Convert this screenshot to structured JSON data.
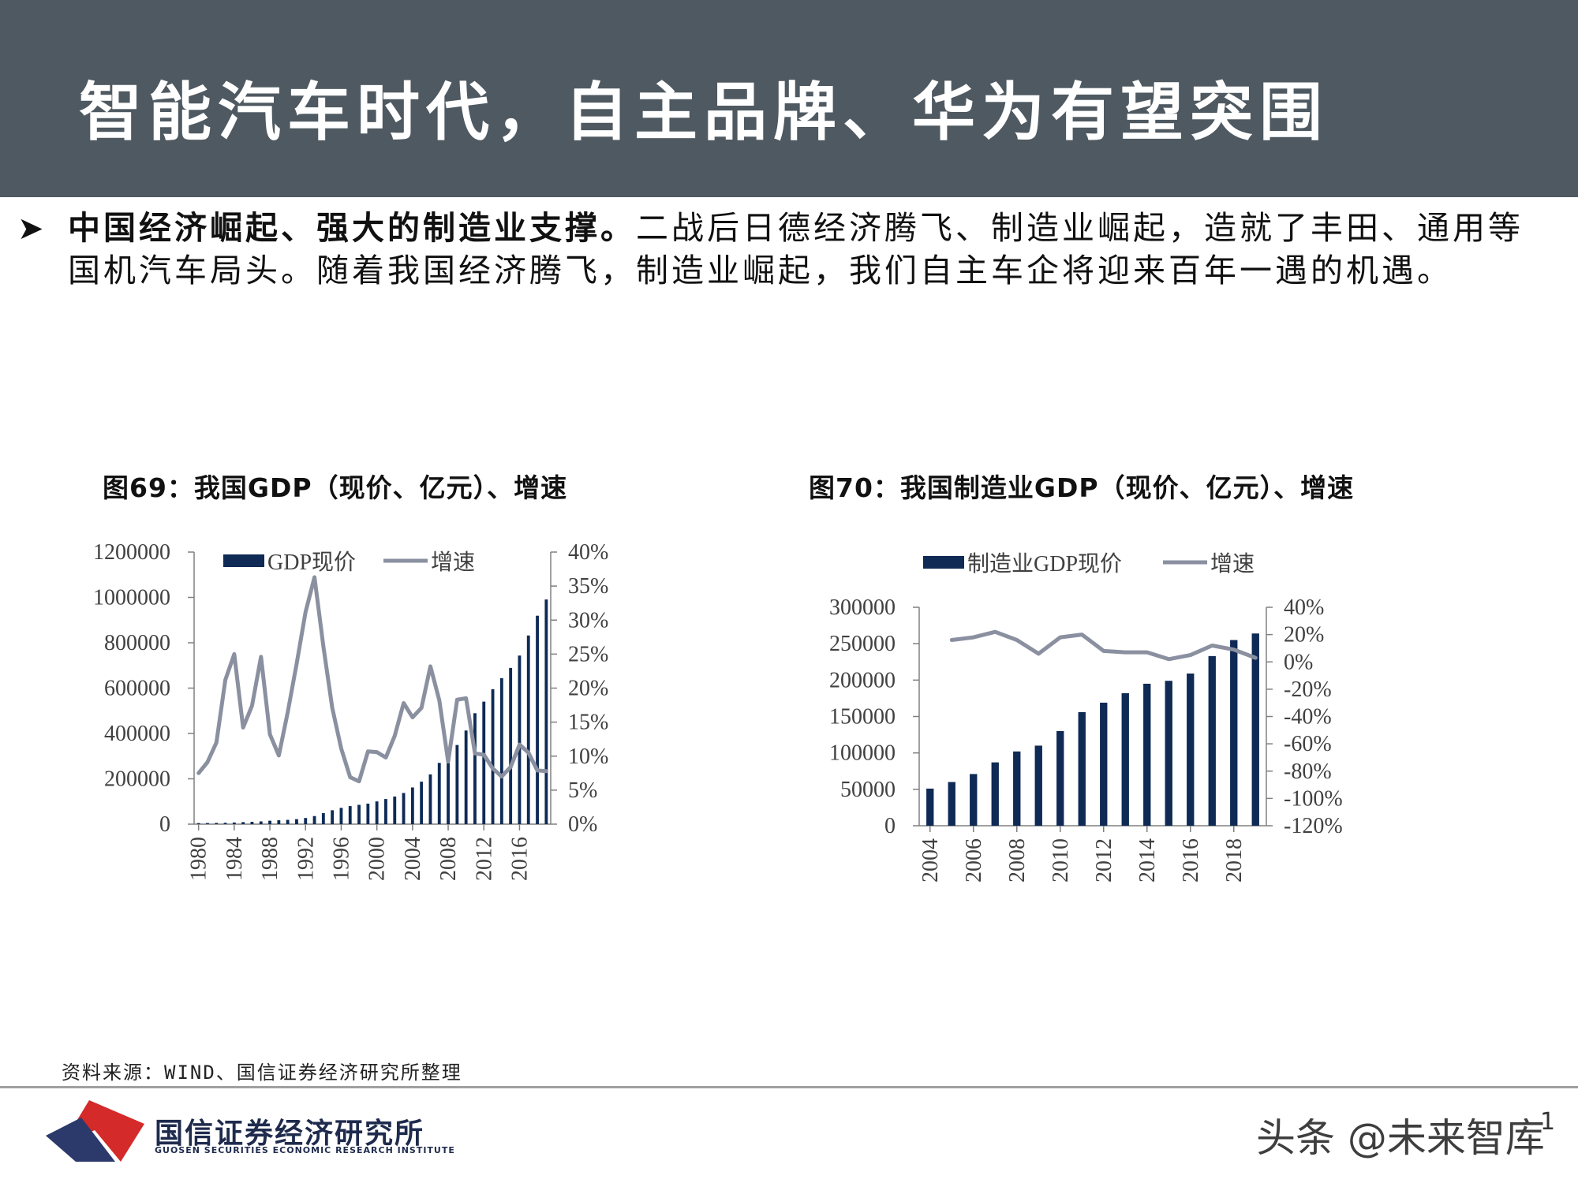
{
  "header": {
    "title": "智能汽车时代，自主品牌、华为有望突围",
    "background_color": "#4f5961"
  },
  "bullet": {
    "bold_text": "中国经济崛起、强大的制造业支撑。",
    "body_text": "二战后日德经济腾飞、制造业崛起，造就了丰田、通用等国机汽车局头。随着我国经济腾飞，制造业崛起，我们自主车企将迎来百年一遇的机遇。"
  },
  "chart_data": [
    {
      "type": "bar",
      "title": "图69：我国GDP（现价、亿元）、增速",
      "legend": [
        "GDP现价",
        "增速"
      ],
      "legend_placement": "top-left",
      "x": [
        1980,
        1981,
        1982,
        1983,
        1984,
        1985,
        1986,
        1987,
        1988,
        1989,
        1990,
        1991,
        1992,
        1993,
        1994,
        1995,
        1996,
        1997,
        1998,
        1999,
        2000,
        2001,
        2002,
        2003,
        2004,
        2005,
        2006,
        2007,
        2008,
        2009,
        2010,
        2011,
        2012,
        2013,
        2014,
        2015,
        2016,
        2017,
        2018,
        2019
      ],
      "x_tick_labels": [
        "1980",
        "1984",
        "1988",
        "1992",
        "1996",
        "2000",
        "2004",
        "2008",
        "2012",
        "2016"
      ],
      "series": [
        {
          "name": "GDP现价",
          "axis": "left",
          "type": "bar",
          "color": "#0e2a55",
          "values": [
            4588,
            4936,
            5373,
            6021,
            7279,
            9099,
            10376,
            12175,
            15180,
            17180,
            18873,
            22006,
            27195,
            35673,
            48638,
            61340,
            71814,
            79715,
            85196,
            90564,
            100280,
            110863,
            121717,
            137422,
            161840,
            187319,
            219439,
            270232,
            319516,
            349081,
            413030,
            489301,
            540367,
            595244,
            643974,
            689052,
            743586,
            832036,
            919281,
            990865
          ]
        },
        {
          "name": "增速",
          "axis": "right",
          "type": "line",
          "color": "#8a90a0",
          "values": [
            7.5,
            9.1,
            12,
            21.2,
            25,
            14.2,
            17.4,
            24.6,
            13.2,
            10.1,
            16.4,
            23.6,
            31.2,
            36.3,
            26.1,
            17.1,
            11.1,
            6.9,
            6.3,
            10.7,
            10.6,
            9.8,
            13,
            17.8,
            15.7,
            17.1,
            23.2,
            18.2,
            9.2,
            18.3,
            18.5,
            10.4,
            10.2,
            8.2,
            7,
            8.4,
            11.7,
            10.5,
            7.9,
            7.8
          ]
        }
      ],
      "y_left": {
        "min": 0,
        "max": 1200000,
        "ticks": [
          "0",
          "200000",
          "400000",
          "600000",
          "800000",
          "1000000",
          "1200000"
        ]
      },
      "y_right": {
        "min": 0,
        "max": 40,
        "ticks": [
          "0%",
          "5%",
          "10%",
          "15%",
          "20%",
          "25%",
          "30%",
          "35%",
          "40%"
        ]
      }
    },
    {
      "type": "bar",
      "title": "图70：我国制造业GDP（现价、亿元）、增速",
      "legend": [
        "制造业GDP现价",
        "增速"
      ],
      "legend_placement": "top",
      "x": [
        2004,
        2005,
        2006,
        2007,
        2008,
        2009,
        2010,
        2011,
        2012,
        2013,
        2014,
        2015,
        2016,
        2017,
        2018,
        2019
      ],
      "x_tick_labels": [
        "2004",
        "2006",
        "2008",
        "2010",
        "2012",
        "2014",
        "2016",
        "2018"
      ],
      "series": [
        {
          "name": "制造业GDP现价",
          "axis": "left",
          "type": "bar",
          "color": "#0e2a55",
          "values": [
            51000,
            60000,
            71000,
            87000,
            102000,
            110000,
            130000,
            156000,
            169000,
            182000,
            195000,
            199000,
            209000,
            233000,
            255000,
            264000
          ]
        },
        {
          "name": "增速",
          "axis": "right",
          "type": "line",
          "color": "#8a90a0",
          "values": [
            null,
            16,
            18,
            22,
            16,
            6,
            18,
            20,
            8,
            7,
            7,
            2,
            5,
            12,
            9,
            3
          ]
        }
      ],
      "y_left": {
        "min": 0,
        "max": 300000,
        "ticks": [
          "0",
          "50000",
          "100000",
          "150000",
          "200000",
          "250000",
          "300000"
        ]
      },
      "y_right": {
        "min": -120,
        "max": 40,
        "ticks": [
          "-120%",
          "-100%",
          "-80%",
          "-60%",
          "-40%",
          "-20%",
          "0%",
          "20%",
          "40%"
        ]
      }
    }
  ],
  "footer": {
    "source": "资料来源：WIND、国信证券经济研究所整理",
    "logo_cn": "国信证券经济研究所",
    "logo_en": "GUOSEN SECURITIES ECONOMIC RESEARCH INSTITUTE",
    "watermark": "头条 @未来智库",
    "page_number": "1",
    "logo_colors": {
      "red": "#d42a2a",
      "navy": "#2b3a6b"
    }
  }
}
